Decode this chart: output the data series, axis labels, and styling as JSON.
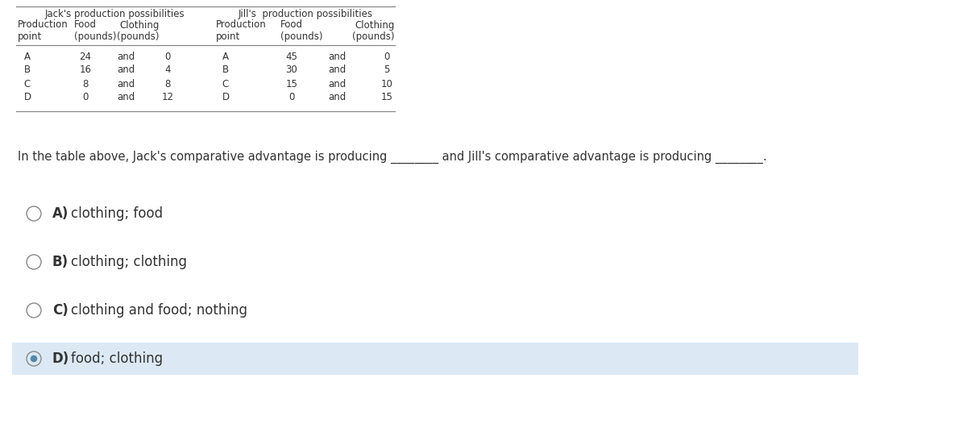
{
  "bg_color": "#ffffff",
  "highlight_color": "#dce9f5",
  "text_color": "#333333",
  "border_color": "#888888",
  "jack_title": "Jack's production possibilities",
  "jill_title": "Jill's  production possibilities",
  "jack_data": [
    [
      "A",
      "24",
      "and",
      "0"
    ],
    [
      "B",
      "16",
      "and",
      "4"
    ],
    [
      "C",
      "8",
      "and",
      "8"
    ],
    [
      "D",
      "0",
      "and",
      "12"
    ]
  ],
  "jill_data": [
    [
      "A",
      "45",
      "and",
      "0"
    ],
    [
      "B",
      "30",
      "and",
      "5"
    ],
    [
      "C",
      "15",
      "and",
      "10"
    ],
    [
      "D",
      "0",
      "and",
      "15"
    ]
  ],
  "question": "In the table above, Jack's comparative advantage is producing ________ and Jill's comparative advantage is producing ________.",
  "options": [
    {
      "label": "A)",
      "text": "clothing; food",
      "selected": false
    },
    {
      "label": "B)",
      "text": "clothing; clothing",
      "selected": false
    },
    {
      "label": "C)",
      "text": "clothing and food; nothing",
      "selected": false
    },
    {
      "label": "D)",
      "text": "food; clothing",
      "selected": true
    }
  ],
  "fig_width": 12.0,
  "fig_height": 5.26,
  "dpi": 100
}
